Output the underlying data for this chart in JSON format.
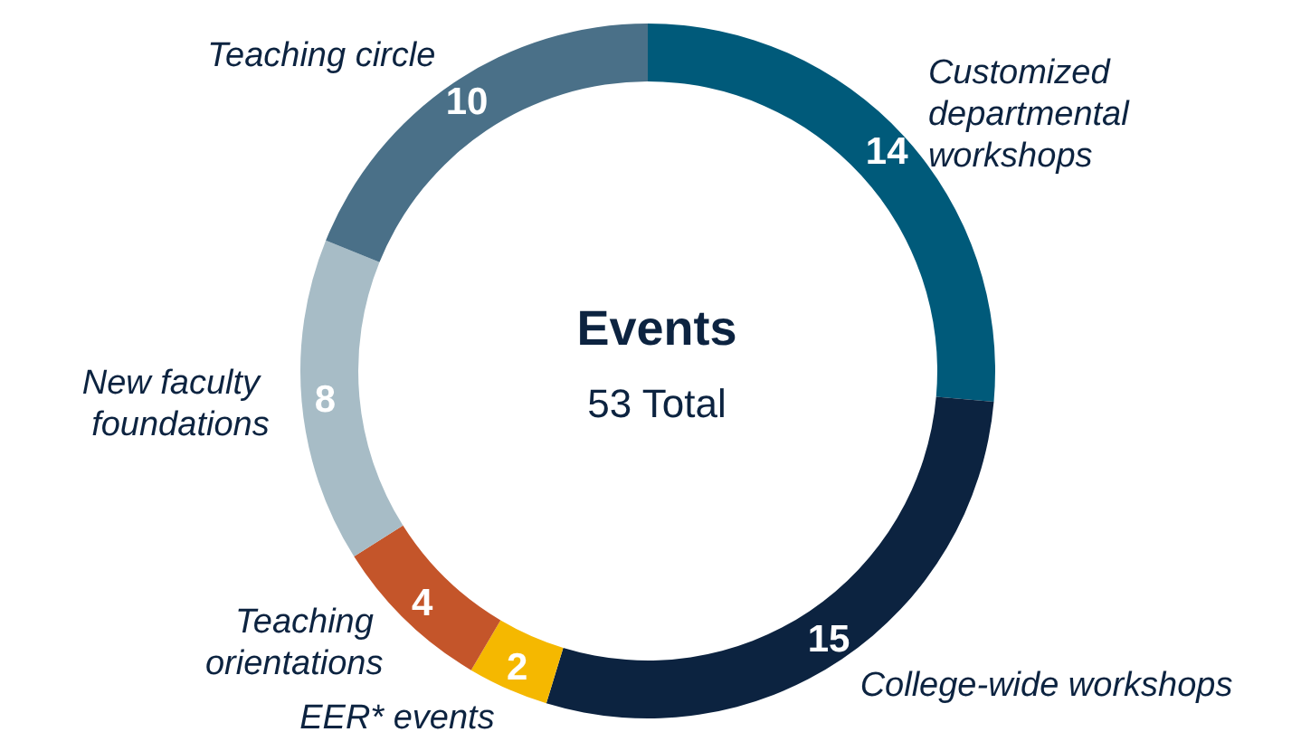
{
  "chart_data": {
    "type": "donut",
    "title": "Events",
    "subtitle": "53 Total",
    "categories": [
      "Customized departmental workshops",
      "College-wide workshops",
      "EER* events",
      "Teaching orientations",
      "New faculty foundations",
      "Teaching circle"
    ],
    "values": [
      14,
      15,
      2,
      4,
      8,
      10
    ],
    "colors": [
      "#005a7a",
      "#0c2340",
      "#f5b800",
      "#c4552a",
      "#a7bcc6",
      "#4a7088"
    ],
    "data_labels": true,
    "legend": false
  }
}
